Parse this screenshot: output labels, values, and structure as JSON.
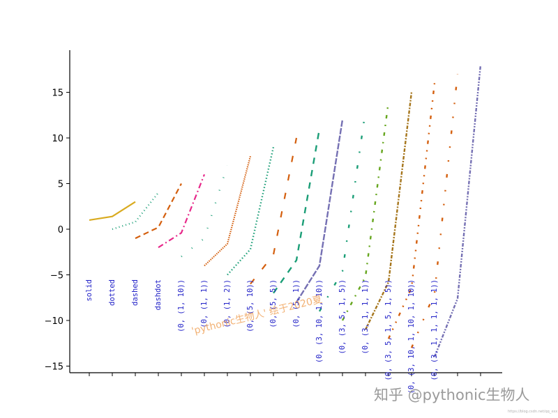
{
  "chart_data": {
    "type": "line",
    "ylim": [
      -15.5,
      19.5
    ],
    "yticks": [
      -15,
      -10,
      -5,
      0,
      5,
      10,
      15
    ],
    "x_tick_count": 18,
    "series": [
      {
        "label": "solid",
        "color": "#d9ab20",
        "dash": "solid",
        "width": 2.2,
        "x": [
          0,
          2
        ],
        "y": [
          1,
          3
        ]
      },
      {
        "label": "dotted",
        "color": "#1b9e77",
        "dash": "1,4",
        "width": 2.4,
        "x": [
          1,
          3
        ],
        "y": [
          0,
          4
        ]
      },
      {
        "label": "dashed",
        "color": "#d45f0e",
        "dash": "8,5",
        "width": 2.2,
        "x": [
          2,
          4
        ],
        "y": [
          -1,
          5
        ]
      },
      {
        "label": "dashdot",
        "color": "#e7298a",
        "dash": "8,4,2,4",
        "width": 2.2,
        "x": [
          3,
          5
        ],
        "y": [
          -2,
          6
        ]
      },
      {
        "label": "(0, (1, 10))",
        "color": "#1b9e77",
        "dash": "1,18",
        "width": 2.4,
        "x": [
          4,
          6
        ],
        "y": [
          -3,
          7
        ]
      },
      {
        "label": "(0, (1, 1))",
        "color": "#d45f0e",
        "dash": "1.5,1.5",
        "width": 2.2,
        "x": [
          5,
          7
        ],
        "y": [
          -4,
          8
        ]
      },
      {
        "label": "(0, (1, 2))",
        "color": "#1b9e77",
        "dash": "1.5,3",
        "width": 2.4,
        "x": [
          6,
          8
        ],
        "y": [
          -5,
          9
        ]
      },
      {
        "label": "(0, (5, 10))",
        "color": "#d45f0e",
        "dash": "9,18",
        "width": 2.2,
        "x": [
          7,
          9
        ],
        "y": [
          -6,
          10
        ]
      },
      {
        "label": "(0, (5, 5))",
        "color": "#1b9e77",
        "dash": "9,9",
        "width": 2.4,
        "x": [
          8,
          10
        ],
        "y": [
          -7,
          11
        ]
      },
      {
        "label": "(0, (5, 1))",
        "color": "#7570b3",
        "dash": "9,2",
        "width": 2.4,
        "x": [
          9,
          11
        ],
        "y": [
          -8,
          12
        ]
      },
      {
        "label": "(0, (3, 10, 1, 10))",
        "color": "#1b9e77",
        "dash": "5,18,2,18",
        "width": 2.4,
        "x": [
          10,
          12
        ],
        "y": [
          -9,
          13
        ]
      },
      {
        "label": "(0, (3, 5, 1, 5))",
        "color": "#66a61e",
        "dash": "5,9,2,9",
        "width": 2.4,
        "x": [
          11,
          13
        ],
        "y": [
          -10,
          14
        ]
      },
      {
        "label": "(0, (3, 1, 1, 1))",
        "color": "#a6761d",
        "dash": "5,2,2,2",
        "width": 2.4,
        "x": [
          12,
          14
        ],
        "y": [
          -11,
          15
        ]
      },
      {
        "label": "(0, (3, 5, 1, 5, 1, 5))",
        "color": "#d45f0e",
        "dash": "5,9,2,9,2,9",
        "width": 2.4,
        "x": [
          13,
          15
        ],
        "y": [
          -12,
          16
        ]
      },
      {
        "label": "(0, (3, 10, 1, 10, 1, 10))",
        "color": "#d45f0e",
        "dash": "5,18,2,18,2,18",
        "width": 2.4,
        "x": [
          14,
          16
        ],
        "y": [
          -13,
          17
        ]
      },
      {
        "label": "(0, (3, 1, 1, 1, 1, 1))",
        "color": "#7570b3",
        "dash": "5,2,2,2,2,2",
        "width": 2.4,
        "x": [
          15,
          17
        ],
        "y": [
          -14,
          18
        ]
      }
    ],
    "label_color": "#2323c8",
    "axis_color": "#000000"
  },
  "watermarks": {
    "overlay_text": "'pythonic生物人' 绘于2020夏",
    "overlay_color": "#f0a45c",
    "brand_text": "知乎 @pythonic生物人",
    "source_text": "https://blog.csdn.net/qq_xxx"
  }
}
